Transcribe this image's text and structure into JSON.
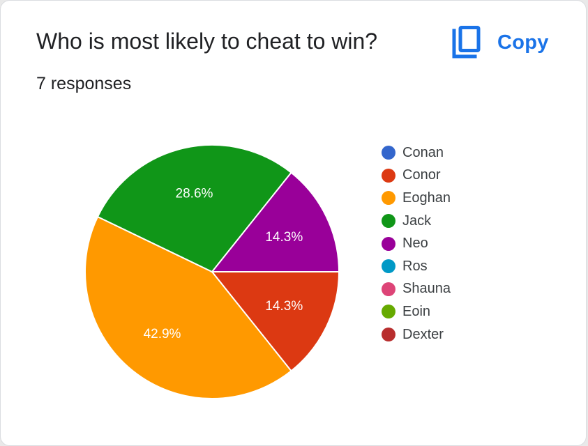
{
  "header": {
    "question": "Who is most likely to cheat to win?",
    "responses": "7 responses",
    "copy_label": "Copy"
  },
  "colors": {
    "accent": "#1a73e8"
  },
  "chart_data": {
    "type": "pie",
    "title": "Who is most likely to cheat to win?",
    "total_responses": 7,
    "slices": [
      {
        "name": "Conan",
        "value": 0,
        "count": 0,
        "color": "#3366cc",
        "label": ""
      },
      {
        "name": "Conor",
        "value": 14.3,
        "count": 1,
        "color": "#dc3912",
        "label": "14.3%"
      },
      {
        "name": "Eoghan",
        "value": 42.9,
        "count": 3,
        "color": "#ff9900",
        "label": "42.9%"
      },
      {
        "name": "Jack",
        "value": 28.6,
        "count": 2,
        "color": "#109618",
        "label": "28.6%"
      },
      {
        "name": "Neo",
        "value": 14.3,
        "count": 1,
        "color": "#990099",
        "label": "14.3%"
      },
      {
        "name": "Ros",
        "value": 0,
        "count": 0,
        "color": "#0099c6",
        "label": ""
      },
      {
        "name": "Shauna",
        "value": 0,
        "count": 0,
        "color": "#dd4477",
        "label": ""
      },
      {
        "name": "Eoin",
        "value": 0,
        "count": 0,
        "color": "#66aa00",
        "label": ""
      },
      {
        "name": "Dexter",
        "value": 0,
        "count": 0,
        "color": "#b82e2e",
        "label": ""
      }
    ],
    "legend_position": "right"
  }
}
